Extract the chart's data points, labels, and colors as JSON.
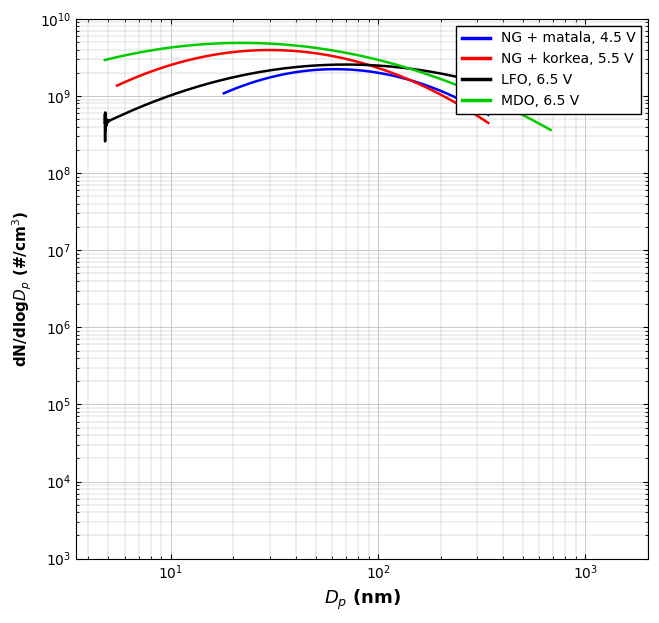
{
  "title": "",
  "xlabel": "D_p (nm)",
  "ylabel": "dN/dlogD_p (#/cm^3)",
  "xlim": [
    3.5,
    2000
  ],
  "ylim": [
    1000.0,
    10000000000.0
  ],
  "legend_entries": [
    "NG + matala, 4.5 V",
    "NG + korkea, 5.5 V",
    "LFO, 6.5 V",
    "MDO, 6.5 V"
  ],
  "colors": [
    "blue",
    "red",
    "black",
    "#00cc00"
  ],
  "background_color": "#ffffff",
  "grid_color": "#c0c0c0",
  "lw": 1.8
}
